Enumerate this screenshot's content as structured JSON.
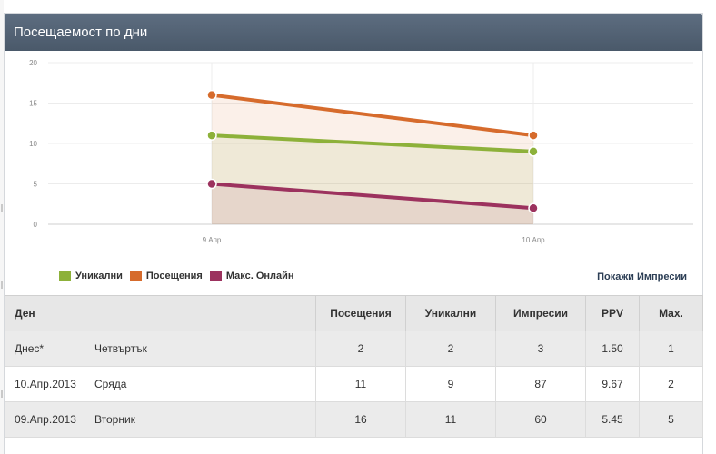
{
  "panel": {
    "title": "Посещаемост по дни"
  },
  "legend": [
    {
      "label": "Уникални",
      "color": "#8db13a"
    },
    {
      "label": "Посещения",
      "color": "#d66b2c"
    },
    {
      "label": "Макс. Онлайн",
      "color": "#9c325e"
    }
  ],
  "show_impressions": "Покажи Импресии",
  "chart_data": {
    "type": "area",
    "categories": [
      "9 Апр",
      "10 Апр"
    ],
    "ylim": [
      0,
      20
    ],
    "yticks": [
      0,
      5,
      10,
      15,
      20
    ],
    "series": [
      {
        "name": "Посещения",
        "values": [
          16,
          11
        ],
        "color": "#d66b2c"
      },
      {
        "name": "Уникални",
        "values": [
          11,
          9
        ],
        "color": "#8db13a"
      },
      {
        "name": "Макс. Онлайн",
        "values": [
          5,
          2
        ],
        "color": "#9c325e"
      }
    ],
    "grid": true
  },
  "table": {
    "headers": [
      "Ден",
      "",
      "Посещения",
      "Уникални",
      "Импресии",
      "PPV",
      "Max."
    ],
    "rows": [
      [
        "Днес*",
        "Четвъртък",
        "2",
        "2",
        "3",
        "1.50",
        "1"
      ],
      [
        "10.Апр.2013",
        "Сряда",
        "11",
        "9",
        "87",
        "9.67",
        "2"
      ],
      [
        "09.Апр.2013",
        "Вторник",
        "16",
        "11",
        "60",
        "5.45",
        "5"
      ]
    ]
  }
}
